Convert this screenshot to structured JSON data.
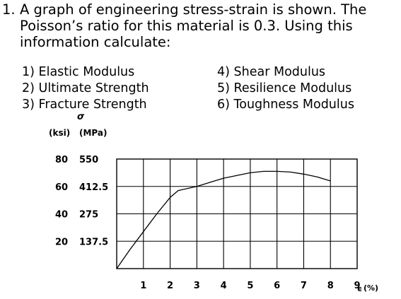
{
  "question": {
    "number": "1.",
    "lines": [
      "A graph of engineering stress-strain is shown. The",
      "Poisson’s ratio for this material is 0.3.  Using this",
      "information calculate:"
    ]
  },
  "tasks": [
    "1) Elastic Modulus",
    "2) Ultimate Strength",
    "3) Fracture Strength",
    "4) Shear Modulus",
    "5) Resilience Modulus",
    "6) Toughness Modulus"
  ],
  "chart_data": {
    "type": "line",
    "title": "",
    "y_symbol": "σ",
    "y_unit_ksi": "(ksi)",
    "y_unit_mpa": "(MPa)",
    "x_symbol": "ϵ",
    "x_unit": "(%)",
    "xlim": [
      0,
      9
    ],
    "ylim_ksi": [
      0,
      80
    ],
    "x_ticks": [
      "1",
      "2",
      "3",
      "4",
      "5",
      "6",
      "7",
      "8",
      "9"
    ],
    "y_ticks": [
      {
        "value": 80,
        "ksi": "80",
        "mpa": "550"
      },
      {
        "value": 60,
        "ksi": "60",
        "mpa": "412.5"
      },
      {
        "value": 40,
        "ksi": "40",
        "mpa": "275"
      },
      {
        "value": 20,
        "ksi": "20",
        "mpa": "137.5"
      }
    ],
    "grid": true,
    "series": [
      {
        "x": [
          0,
          0.5,
          1.0,
          1.5,
          2.0,
          2.3,
          3.0,
          3.5,
          4.0,
          4.5,
          5.0,
          5.5,
          6.0,
          6.5,
          7.0,
          7.5,
          8.0
        ],
        "y": [
          0,
          14,
          27,
          40,
          52,
          57,
          60,
          63,
          66,
          68,
          70,
          71,
          71,
          70.5,
          69,
          67,
          64
        ]
      }
    ],
    "colors": {
      "line": "#000000",
      "grid": "#000000",
      "background": "#ffffff"
    }
  }
}
